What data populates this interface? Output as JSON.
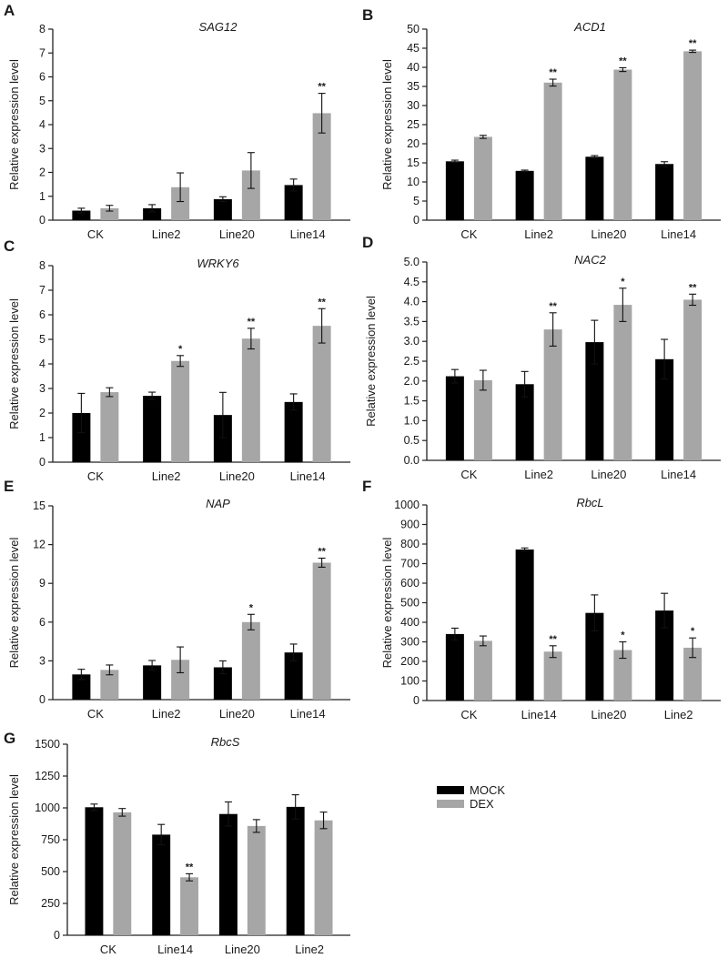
{
  "colors": {
    "MOCK": "#000000",
    "DEX": "#a6a6a6",
    "axis": "#222222"
  },
  "legend": [
    {
      "name": "MOCK",
      "color": "#000000"
    },
    {
      "name": "DEX",
      "color": "#a6a6a6"
    }
  ],
  "chart_data": [
    {
      "panel": "A",
      "type": "bar",
      "title": "SAG12",
      "ylabel": "Relative expression level",
      "xlabel": "",
      "categories": [
        "CK",
        "Line2",
        "Line20",
        "Line14"
      ],
      "ylim": [
        0,
        8
      ],
      "yticks": [
        "0",
        "1",
        "2",
        "3",
        "4",
        "5",
        "6",
        "7",
        "8"
      ],
      "series": [
        {
          "name": "MOCK",
          "values": [
            0.4,
            0.5,
            0.88,
            1.47
          ],
          "errors": [
            0.1,
            0.15,
            0.1,
            0.25
          ],
          "sig": [
            "",
            "",
            "",
            ""
          ]
        },
        {
          "name": "DEX",
          "values": [
            0.5,
            1.38,
            2.08,
            4.48
          ],
          "errors": [
            0.12,
            0.6,
            0.75,
            0.83
          ],
          "sig": [
            "",
            "",
            "",
            "**"
          ]
        }
      ]
    },
    {
      "panel": "B",
      "type": "bar",
      "title": "ACD1",
      "ylabel": "Relative expression level",
      "xlabel": "",
      "categories": [
        "CK",
        "Line2",
        "Line20",
        "Line14"
      ],
      "ylim": [
        0,
        50
      ],
      "yticks": [
        "0",
        "5",
        "10",
        "15",
        "20",
        "25",
        "30",
        "35",
        "40",
        "45",
        "50"
      ],
      "series": [
        {
          "name": "MOCK",
          "values": [
            15.4,
            12.9,
            16.6,
            14.7
          ],
          "errors": [
            0.3,
            0.2,
            0.3,
            0.6
          ],
          "sig": [
            "",
            "",
            "",
            ""
          ]
        },
        {
          "name": "DEX",
          "values": [
            21.8,
            36.0,
            39.4,
            44.2
          ],
          "errors": [
            0.4,
            0.9,
            0.5,
            0.3
          ],
          "sig": [
            "",
            "**",
            "**",
            "**"
          ]
        }
      ]
    },
    {
      "panel": "C",
      "type": "bar",
      "title": "WRKY6",
      "ylabel": "Relative expression level",
      "xlabel": "",
      "categories": [
        "CK",
        "Line2",
        "Line20",
        "Line14"
      ],
      "ylim": [
        0,
        8
      ],
      "yticks": [
        "0",
        "1",
        "2",
        "3",
        "4",
        "5",
        "6",
        "7",
        "8"
      ],
      "series": [
        {
          "name": "MOCK",
          "values": [
            2.0,
            2.7,
            1.92,
            2.45
          ],
          "errors": [
            0.8,
            0.15,
            0.92,
            0.33
          ],
          "sig": [
            "",
            "",
            "",
            ""
          ]
        },
        {
          "name": "DEX",
          "values": [
            2.85,
            4.12,
            5.03,
            5.55
          ],
          "errors": [
            0.18,
            0.22,
            0.42,
            0.7
          ],
          "sig": [
            "",
            "*",
            "**",
            "**"
          ]
        }
      ]
    },
    {
      "panel": "D",
      "type": "bar",
      "title": "NAC2",
      "ylabel": "Relative expression level",
      "xlabel": "",
      "categories": [
        "CK",
        "Line2",
        "Line20",
        "Line14"
      ],
      "ylim": [
        0,
        5
      ],
      "yticks": [
        "0.0",
        "0.5",
        "1.0",
        "1.5",
        "2.0",
        "2.5",
        "3.0",
        "3.5",
        "4.0",
        "4.5",
        "5.0"
      ],
      "series": [
        {
          "name": "MOCK",
          "values": [
            2.12,
            1.92,
            2.98,
            2.55
          ],
          "errors": [
            0.17,
            0.32,
            0.55,
            0.5
          ],
          "sig": [
            "",
            "",
            "",
            ""
          ]
        },
        {
          "name": "DEX",
          "values": [
            2.02,
            3.3,
            3.92,
            4.05
          ],
          "errors": [
            0.25,
            0.42,
            0.42,
            0.14
          ],
          "sig": [
            "",
            "**",
            "*",
            "**"
          ]
        }
      ]
    },
    {
      "panel": "E",
      "type": "bar",
      "title": "NAP",
      "ylabel": "Relative expression level",
      "xlabel": "",
      "categories": [
        "CK",
        "Line2",
        "Line20",
        "Line14"
      ],
      "ylim": [
        0,
        15
      ],
      "yticks": [
        "0",
        "3",
        "6",
        "9",
        "12",
        "15"
      ],
      "series": [
        {
          "name": "MOCK",
          "values": [
            1.95,
            2.65,
            2.5,
            3.65
          ],
          "errors": [
            0.4,
            0.38,
            0.5,
            0.65
          ],
          "sig": [
            "",
            "",
            "",
            ""
          ]
        },
        {
          "name": "DEX",
          "values": [
            2.3,
            3.08,
            6.0,
            10.6
          ],
          "errors": [
            0.38,
            1.0,
            0.6,
            0.35
          ],
          "sig": [
            "",
            "",
            "*",
            "**"
          ]
        }
      ]
    },
    {
      "panel": "F",
      "type": "bar",
      "title": "RbcL",
      "ylabel": "Relative expression level",
      "xlabel": "",
      "categories": [
        "CK",
        "Line14",
        "Line20",
        "Line2"
      ],
      "ylim": [
        0,
        1000
      ],
      "yticks": [
        "0",
        "100",
        "200",
        "300",
        "400",
        "500",
        "600",
        "700",
        "800",
        "900",
        "1000"
      ],
      "series": [
        {
          "name": "MOCK",
          "values": [
            340,
            772,
            448,
            460
          ],
          "errors": [
            30,
            8,
            92,
            88
          ],
          "sig": [
            "",
            "",
            "",
            ""
          ]
        },
        {
          "name": "DEX",
          "values": [
            305,
            250,
            258,
            270
          ],
          "errors": [
            25,
            30,
            42,
            50
          ],
          "sig": [
            "",
            "**",
            "*",
            "*"
          ]
        }
      ]
    },
    {
      "panel": "G",
      "type": "bar",
      "title": "RbcS",
      "ylabel": "Relative expression level",
      "xlabel": "",
      "categories": [
        "CK",
        "Line14",
        "Line20",
        "Line2"
      ],
      "ylim": [
        0,
        1500
      ],
      "yticks": [
        "0",
        "250",
        "500",
        "750",
        "1000",
        "1250",
        "1500"
      ],
      "series": [
        {
          "name": "MOCK",
          "values": [
            1005,
            790,
            952,
            1008
          ],
          "errors": [
            25,
            80,
            95,
            95
          ],
          "sig": [
            "",
            "",
            "",
            ""
          ]
        },
        {
          "name": "DEX",
          "values": [
            965,
            455,
            858,
            902
          ],
          "errors": [
            30,
            28,
            50,
            65
          ],
          "sig": [
            "",
            "**",
            "",
            ""
          ]
        }
      ]
    }
  ]
}
